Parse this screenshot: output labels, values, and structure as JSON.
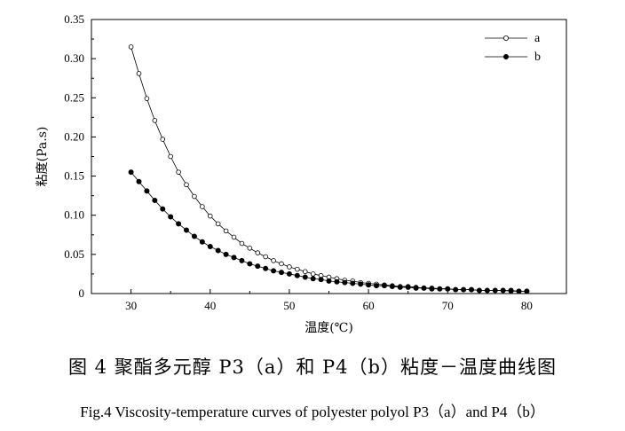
{
  "chart_data": {
    "type": "line",
    "title": "",
    "xlabel": "温度(℃)",
    "ylabel": "粘度(Pa.s)",
    "xlim": [
      25,
      85
    ],
    "ylim": [
      0,
      0.35
    ],
    "x_ticks": [
      30,
      40,
      50,
      60,
      70,
      80
    ],
    "y_ticks": [
      "0",
      "0.05",
      "0.10",
      "0.15",
      "0.20",
      "0.25",
      "0.30",
      "0.35"
    ],
    "legend_position": "top-right",
    "x": [
      30,
      31,
      32,
      33,
      34,
      35,
      36,
      37,
      38,
      39,
      40,
      41,
      42,
      43,
      44,
      45,
      46,
      47,
      48,
      49,
      50,
      51,
      52,
      53,
      54,
      55,
      56,
      57,
      58,
      59,
      60,
      61,
      62,
      63,
      64,
      65,
      66,
      67,
      68,
      69,
      70,
      71,
      72,
      73,
      74,
      75,
      76,
      77,
      78,
      79,
      80
    ],
    "series": [
      {
        "name": "a",
        "marker": "open-circle",
        "values": [
          0.315,
          0.281,
          0.249,
          0.221,
          0.197,
          0.175,
          0.155,
          0.139,
          0.124,
          0.111,
          0.099,
          0.089,
          0.08,
          0.072,
          0.064,
          0.058,
          0.052,
          0.047,
          0.042,
          0.038,
          0.034,
          0.031,
          0.028,
          0.025,
          0.023,
          0.021,
          0.019,
          0.017,
          0.016,
          0.014,
          0.013,
          0.012,
          0.011,
          0.01,
          0.009,
          0.009,
          0.008,
          0.007,
          0.007,
          0.006,
          0.006,
          0.005,
          0.005,
          0.005,
          0.004,
          0.004,
          0.004,
          0.004,
          0.003,
          0.003,
          0.003
        ]
      },
      {
        "name": "b",
        "marker": "filled-circle",
        "values": [
          0.155,
          0.143,
          0.131,
          0.119,
          0.108,
          0.098,
          0.089,
          0.081,
          0.073,
          0.066,
          0.06,
          0.055,
          0.05,
          0.046,
          0.042,
          0.038,
          0.035,
          0.032,
          0.029,
          0.027,
          0.025,
          0.023,
          0.021,
          0.019,
          0.018,
          0.016,
          0.015,
          0.014,
          0.013,
          0.012,
          0.011,
          0.01,
          0.01,
          0.009,
          0.008,
          0.008,
          0.007,
          0.007,
          0.006,
          0.006,
          0.006,
          0.005,
          0.005,
          0.005,
          0.004,
          0.004,
          0.004,
          0.004,
          0.004,
          0.003,
          0.003
        ]
      }
    ]
  },
  "caption": {
    "chinese": "图 4  聚酯多元醇 P3（a）和 P4（b）粘度－温度曲线图",
    "english": "Fig.4 Viscosity-temperature curves of polyester polyol P3（a）and P4（b）"
  }
}
